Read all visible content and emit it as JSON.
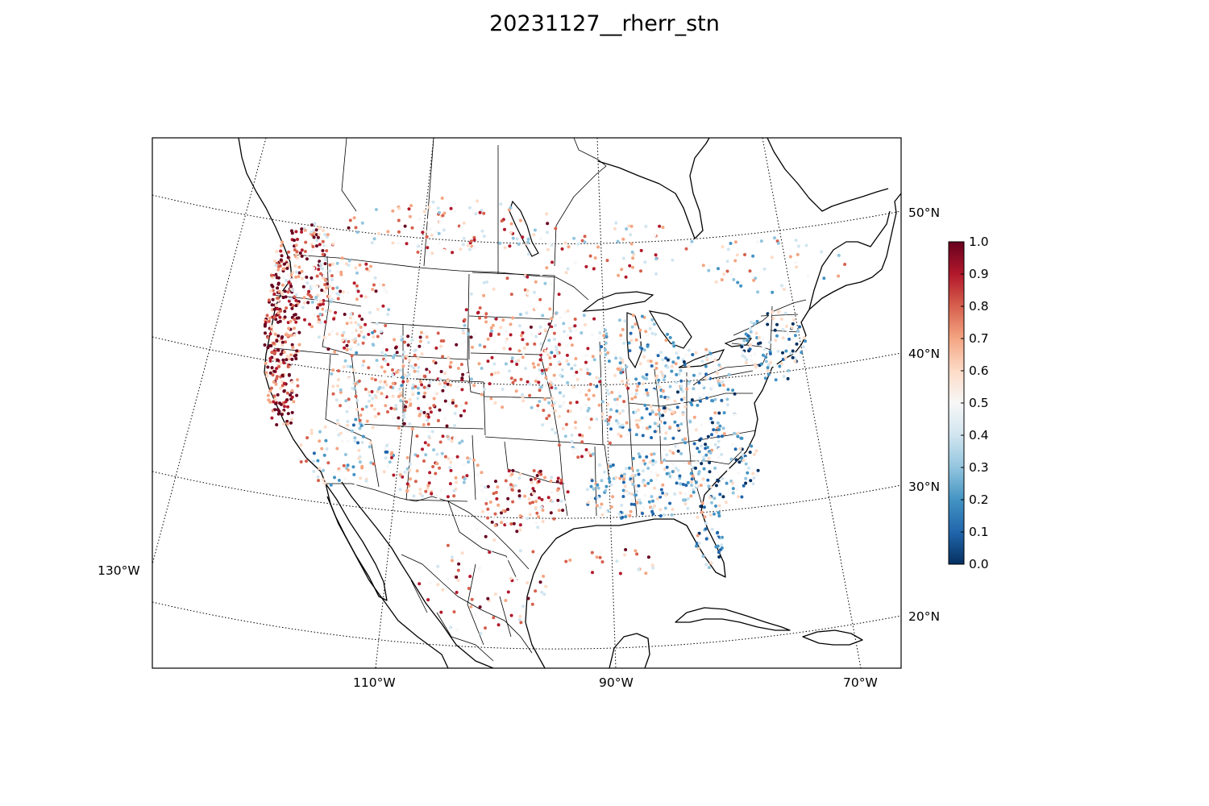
{
  "title": "20231127__rherr_stn",
  "map": {
    "projection": "lambert-conformal",
    "extent_lon": [
      -130,
      -60
    ],
    "extent_lat": [
      18,
      56
    ],
    "parallels": [
      20,
      30,
      40,
      50
    ],
    "meridians": [
      -130,
      -110,
      -90,
      -70
    ],
    "lat_labels": [
      {
        "lat": 50,
        "text": "50°N"
      },
      {
        "lat": 40,
        "text": "40°N"
      },
      {
        "lat": 30,
        "text": "30°N"
      },
      {
        "lat": 20,
        "text": "20°N"
      }
    ],
    "lon_labels": [
      {
        "lon": -130,
        "text": "130°W"
      },
      {
        "lon": -110,
        "text": "110°W"
      },
      {
        "lon": -90,
        "text": "90°W"
      },
      {
        "lon": -70,
        "text": "70°W"
      }
    ],
    "features": [
      "coastlines",
      "country borders",
      "state/province borders",
      "lat-lon grid (dotted)"
    ]
  },
  "colorbar": {
    "colormap": "RdBu_r",
    "min": 0.0,
    "max": 1.0,
    "colors": [
      "#053061",
      "#2166ac",
      "#4393c3",
      "#92c5de",
      "#d1e5f0",
      "#f7f7f7",
      "#fddbc7",
      "#f4a582",
      "#d6604d",
      "#b2182b",
      "#67001f"
    ],
    "ticks": [
      "1.0",
      "0.9",
      "0.8",
      "0.7",
      "0.6",
      "0.5",
      "0.4",
      "0.3",
      "0.2",
      "0.1",
      "0.0"
    ]
  }
}
